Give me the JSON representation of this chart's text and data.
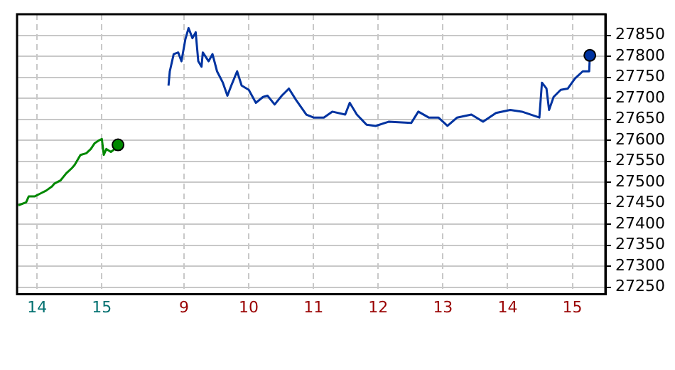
{
  "chart_data": {
    "type": "line",
    "xlim": [
      6.42,
      15.51
    ],
    "ylim": [
      27233,
      27900
    ],
    "xticks": [
      9,
      10,
      11,
      12,
      13,
      14,
      15
    ],
    "x2lim": [
      13.69,
      22.78
    ],
    "x2ticks": [
      14,
      15
    ],
    "yticks": [
      27250,
      27300,
      27350,
      27400,
      27450,
      27500,
      27550,
      27600,
      27650,
      27700,
      27750,
      27800,
      27850
    ],
    "grid": true,
    "legend": false,
    "series": [
      {
        "color": "#008800",
        "axis": "x2",
        "x": [
          13.71,
          13.83,
          13.87,
          13.96,
          14.05,
          14.14,
          14.23,
          14.27,
          14.36,
          14.45,
          14.54,
          14.58,
          14.67,
          14.76,
          14.83,
          14.89,
          14.96,
          15.0,
          15.03,
          15.07,
          15.14,
          15.2,
          15.25
        ],
        "values": [
          27445,
          27452,
          27466,
          27466,
          27473,
          27480,
          27490,
          27497,
          27504,
          27521,
          27534,
          27541,
          27565,
          27569,
          27579,
          27593,
          27600,
          27603,
          27565,
          27579,
          27572,
          27579,
          27589
        ]
      },
      {
        "color": "#0033a0",
        "x": [
          8.76,
          8.78,
          8.84,
          8.91,
          8.96,
          9.02,
          9.07,
          9.13,
          9.18,
          9.22,
          9.27,
          9.29,
          9.38,
          9.44,
          9.51,
          9.6,
          9.67,
          9.73,
          9.82,
          9.89,
          10.0,
          10.11,
          10.22,
          10.29,
          10.4,
          10.51,
          10.62,
          10.73,
          10.89,
          11.0,
          11.16,
          11.29,
          11.49,
          11.56,
          11.67,
          11.82,
          11.96,
          12.16,
          12.51,
          12.62,
          12.78,
          12.93,
          13.07,
          13.22,
          13.44,
          13.62,
          13.82,
          14.04,
          14.22,
          14.49,
          14.53,
          14.6,
          14.64,
          14.71,
          14.82,
          14.93,
          15.04,
          15.16,
          15.26,
          15.27
        ],
        "values": [
          27730,
          27764,
          27805,
          27809,
          27788,
          27840,
          27867,
          27843,
          27857,
          27788,
          27775,
          27809,
          27788,
          27805,
          27764,
          27737,
          27706,
          27730,
          27764,
          27730,
          27720,
          27689,
          27703,
          27706,
          27685,
          27706,
          27723,
          27696,
          27661,
          27654,
          27654,
          27668,
          27661,
          27689,
          27661,
          27637,
          27634,
          27644,
          27641,
          27668,
          27654,
          27654,
          27634,
          27654,
          27661,
          27644,
          27665,
          27672,
          27668,
          27654,
          27737,
          27723,
          27672,
          27703,
          27720,
          27723,
          27747,
          27764,
          27764,
          27802
        ]
      }
    ]
  }
}
